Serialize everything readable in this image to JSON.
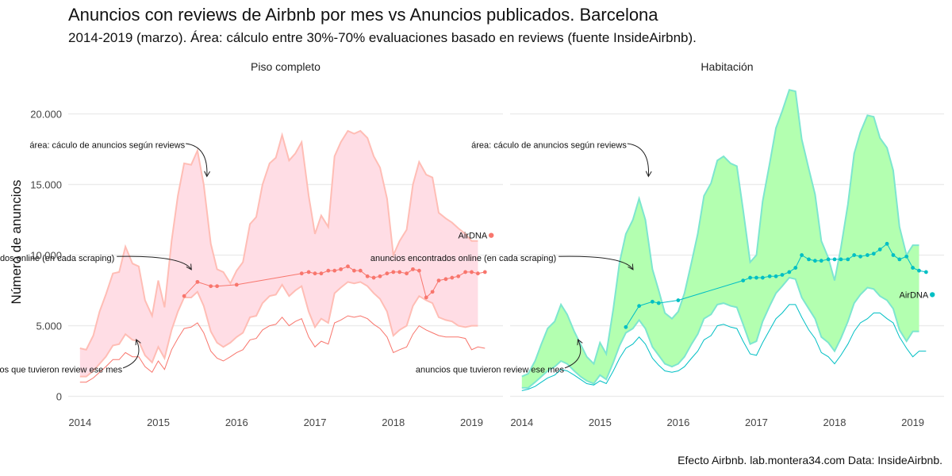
{
  "title": "Anuncios con reviews de Airbnb por mes vs Anuncios publicados. Barcelona",
  "subtitle": "2014-2019 (marzo). Área: cálculo entre 30%-70% evaluaciones basado en reviews (fuente InsideAirbnb).",
  "caption": "Efecto Airbnb. lab.montera34.com Data: InsideAirbnb.",
  "chart_data": {
    "type": "area",
    "ylabel": "Número de anuncios",
    "xlabel": "",
    "xlim": [
      2013.85,
      2019.4
    ],
    "ylim": [
      -700,
      22000
    ],
    "x_ticks": [
      2014,
      2015,
      2016,
      2017,
      2018,
      2019
    ],
    "y_ticks": [
      0,
      5000,
      10000,
      15000,
      20000
    ],
    "y_tick_labels": [
      "0",
      "5.000",
      "10.000",
      "15.000",
      "20.000"
    ],
    "grid": true,
    "legend": "none",
    "annotations": {
      "area": "área: cáculo de anuncios según reviews",
      "online": "anuncios encontrados online (en cada scraping)",
      "reviews": "anuncios que tuvieron review ese mes",
      "airdna": "AirDNA"
    },
    "panels": [
      {
        "name": "Piso completo",
        "color": "#f8766d",
        "area_fill": "#ffdde5",
        "area_stroke": "#ffbdb5",
        "area_x": [
          2014.0,
          2014.08,
          2014.17,
          2014.25,
          2014.33,
          2014.42,
          2014.5,
          2014.58,
          2014.67,
          2014.75,
          2014.83,
          2014.92,
          2015.0,
          2015.08,
          2015.17,
          2015.25,
          2015.33,
          2015.42,
          2015.5,
          2015.58,
          2015.67,
          2015.75,
          2015.83,
          2015.92,
          2016.0,
          2016.08,
          2016.17,
          2016.25,
          2016.33,
          2016.42,
          2016.5,
          2016.58,
          2016.67,
          2016.75,
          2016.83,
          2016.92,
          2017.0,
          2017.08,
          2017.17,
          2017.25,
          2017.33,
          2017.42,
          2017.5,
          2017.58,
          2017.67,
          2017.75,
          2017.83,
          2017.92,
          2018.0,
          2018.08,
          2018.17,
          2018.25,
          2018.33,
          2018.42,
          2018.5,
          2018.58,
          2018.67,
          2018.75,
          2018.83,
          2018.92,
          2019.0,
          2019.08
        ],
        "area_upper": [
          3400,
          3300,
          4300,
          6000,
          7200,
          8700,
          8800,
          10600,
          9400,
          9200,
          6800,
          5700,
          8200,
          6300,
          11000,
          14200,
          16500,
          16400,
          17400,
          15000,
          10800,
          9000,
          8800,
          8000,
          8900,
          9500,
          12200,
          12700,
          15000,
          16500,
          16900,
          18500,
          16700,
          17200,
          18000,
          14200,
          11500,
          12800,
          12000,
          17000,
          18000,
          18800,
          18600,
          18800,
          18300,
          17000,
          16200,
          14000,
          10000,
          11000,
          11800,
          15000,
          16600,
          15700,
          15500,
          13000,
          12600,
          12300,
          11900,
          11500,
          11000,
          11000
        ],
        "area_lower": [
          1400,
          1400,
          1800,
          2300,
          2800,
          3600,
          3700,
          4400,
          4000,
          3900,
          2900,
          2400,
          3500,
          2700,
          4700,
          6000,
          7000,
          7000,
          7400,
          6400,
          4600,
          3800,
          3500,
          3800,
          4200,
          4500,
          5600,
          5700,
          6600,
          7100,
          7200,
          7900,
          7100,
          7500,
          7800,
          6000,
          4900,
          5500,
          5200,
          7300,
          7700,
          8100,
          8000,
          8100,
          7800,
          7300,
          6900,
          6000,
          4300,
          4700,
          5000,
          6400,
          7100,
          6800,
          6600,
          5600,
          5400,
          5300,
          5000,
          4900,
          5000,
          5000
        ],
        "reviews_x": [
          2014.0,
          2014.08,
          2014.17,
          2014.25,
          2014.33,
          2014.42,
          2014.5,
          2014.58,
          2014.67,
          2014.75,
          2014.83,
          2014.92,
          2015.0,
          2015.08,
          2015.17,
          2015.25,
          2015.33,
          2015.42,
          2015.5,
          2015.58,
          2015.67,
          2015.75,
          2015.83,
          2015.92,
          2016.0,
          2016.08,
          2016.17,
          2016.25,
          2016.33,
          2016.42,
          2016.5,
          2016.58,
          2016.67,
          2016.75,
          2016.83,
          2016.92,
          2017.0,
          2017.08,
          2017.17,
          2017.25,
          2017.33,
          2017.42,
          2017.5,
          2017.58,
          2017.67,
          2017.75,
          2017.83,
          2017.92,
          2018.0,
          2018.08,
          2018.17,
          2018.25,
          2018.33,
          2018.42,
          2018.5,
          2018.58,
          2018.67,
          2018.75,
          2018.83,
          2018.92,
          2019.0,
          2019.08,
          2019.17
        ],
        "reviews_values": [
          1000,
          1000,
          1300,
          1700,
          2100,
          2600,
          2600,
          3100,
          2800,
          2800,
          2100,
          1700,
          2500,
          1900,
          3300,
          4100,
          4800,
          4900,
          5200,
          4500,
          3200,
          2700,
          2500,
          2800,
          3100,
          3300,
          4000,
          4100,
          4700,
          5000,
          5100,
          5600,
          5000,
          5300,
          5500,
          4200,
          3500,
          3900,
          3700,
          5200,
          5400,
          5700,
          5600,
          5700,
          5500,
          5100,
          4800,
          4200,
          3100,
          3300,
          3500,
          4400,
          5000,
          4700,
          4500,
          4300,
          4200,
          4200,
          4200,
          4100,
          3300,
          3500,
          3400
        ],
        "online_x": [
          2015.33,
          2015.5,
          2015.67,
          2015.75,
          2016.0,
          2016.83,
          2016.92,
          2017.0,
          2017.08,
          2017.17,
          2017.25,
          2017.33,
          2017.42,
          2017.5,
          2017.58,
          2017.67,
          2017.75,
          2017.83,
          2017.92,
          2018.0,
          2018.08,
          2018.17,
          2018.25,
          2018.33,
          2018.42,
          2018.5,
          2018.58,
          2018.67,
          2018.75,
          2018.83,
          2018.92,
          2019.0,
          2019.08,
          2019.17
        ],
        "online_values": [
          7100,
          8100,
          7800,
          7800,
          7900,
          8700,
          8800,
          8700,
          8700,
          8900,
          8900,
          9000,
          9200,
          8900,
          8900,
          8500,
          8400,
          8500,
          8700,
          8800,
          8800,
          8700,
          9000,
          8900,
          7000,
          7400,
          8200,
          8300,
          8400,
          8500,
          8800,
          8800,
          8700,
          8800
        ],
        "airdna_x": 2019.25,
        "airdna_value": 11400
      },
      {
        "name": "Habitación",
        "color": "#00bfc4",
        "area_fill": "#b3ffb0",
        "area_stroke": "#7de6cf",
        "area_x": [
          2014.0,
          2014.08,
          2014.17,
          2014.25,
          2014.33,
          2014.42,
          2014.5,
          2014.58,
          2014.67,
          2014.75,
          2014.83,
          2014.92,
          2015.0,
          2015.08,
          2015.17,
          2015.25,
          2015.33,
          2015.42,
          2015.5,
          2015.58,
          2015.67,
          2015.75,
          2015.83,
          2015.92,
          2016.0,
          2016.08,
          2016.17,
          2016.25,
          2016.33,
          2016.42,
          2016.5,
          2016.58,
          2016.67,
          2016.75,
          2016.83,
          2016.92,
          2017.0,
          2017.08,
          2017.17,
          2017.25,
          2017.33,
          2017.42,
          2017.5,
          2017.58,
          2017.67,
          2017.75,
          2017.83,
          2017.92,
          2018.0,
          2018.08,
          2018.17,
          2018.25,
          2018.33,
          2018.42,
          2018.5,
          2018.58,
          2018.67,
          2018.75,
          2018.83,
          2018.92,
          2019.0,
          2019.08
        ],
        "area_upper": [
          1400,
          1600,
          2500,
          3700,
          4800,
          5300,
          6500,
          5800,
          4600,
          3700,
          2800,
          2300,
          3800,
          3000,
          6200,
          9500,
          11500,
          12500,
          14000,
          12500,
          9000,
          7500,
          5900,
          5500,
          6000,
          7300,
          9500,
          11500,
          14200,
          15100,
          16700,
          17000,
          16500,
          16300,
          13200,
          9500,
          10000,
          13800,
          16500,
          19000,
          20200,
          21700,
          21600,
          18200,
          16100,
          14300,
          11000,
          9800,
          8200,
          10500,
          13600,
          17200,
          18700,
          19900,
          19800,
          18300,
          17600,
          16000,
          12000,
          10000,
          10700,
          10700
        ],
        "area_lower": [
          600,
          600,
          1000,
          1400,
          1800,
          2100,
          2500,
          2300,
          1800,
          1400,
          1100,
          900,
          1500,
          1200,
          2400,
          3600,
          4500,
          4800,
          5400,
          4800,
          3500,
          2900,
          2300,
          2100,
          2300,
          2800,
          3700,
          4400,
          5500,
          5800,
          6500,
          6600,
          6400,
          6300,
          5100,
          3700,
          3900,
          5300,
          6400,
          7300,
          7800,
          8400,
          8300,
          7000,
          6200,
          5500,
          4200,
          3800,
          3200,
          4100,
          5300,
          6600,
          7200,
          7700,
          7600,
          7100,
          6800,
          6200,
          4700,
          3900,
          4600,
          4600
        ],
        "reviews_x": [
          2014.0,
          2014.08,
          2014.17,
          2014.25,
          2014.33,
          2014.42,
          2014.5,
          2014.58,
          2014.67,
          2014.75,
          2014.83,
          2014.92,
          2015.0,
          2015.08,
          2015.17,
          2015.25,
          2015.33,
          2015.42,
          2015.5,
          2015.58,
          2015.67,
          2015.75,
          2015.83,
          2015.92,
          2016.0,
          2016.08,
          2016.17,
          2016.25,
          2016.33,
          2016.42,
          2016.5,
          2016.58,
          2016.67,
          2016.75,
          2016.83,
          2016.92,
          2017.0,
          2017.08,
          2017.17,
          2017.25,
          2017.33,
          2017.42,
          2017.5,
          2017.58,
          2017.67,
          2017.75,
          2017.83,
          2017.92,
          2018.0,
          2018.08,
          2018.17,
          2018.25,
          2018.33,
          2018.42,
          2018.5,
          2018.58,
          2018.67,
          2018.75,
          2018.83,
          2018.92,
          2019.0,
          2019.08,
          2019.17
        ],
        "reviews_values": [
          400,
          500,
          700,
          1000,
          1300,
          1500,
          1900,
          1800,
          1500,
          1200,
          900,
          800,
          1100,
          900,
          1800,
          2700,
          3400,
          3700,
          4200,
          3700,
          2700,
          2200,
          1800,
          1700,
          1800,
          2100,
          2700,
          3200,
          4000,
          4300,
          5000,
          5100,
          4900,
          4800,
          3900,
          3000,
          2900,
          3800,
          4700,
          5500,
          5900,
          6500,
          6500,
          5600,
          4700,
          4100,
          3100,
          2800,
          2300,
          2900,
          3700,
          4600,
          5200,
          5500,
          5900,
          5900,
          5500,
          5200,
          4200,
          3400,
          2800,
          3200,
          3200
        ],
        "online_x": [
          2015.33,
          2015.5,
          2015.67,
          2015.75,
          2016.0,
          2016.83,
          2016.92,
          2017.0,
          2017.08,
          2017.17,
          2017.25,
          2017.33,
          2017.42,
          2017.5,
          2017.58,
          2017.67,
          2017.75,
          2017.83,
          2017.92,
          2018.0,
          2018.08,
          2018.17,
          2018.25,
          2018.33,
          2018.42,
          2018.5,
          2018.58,
          2018.67,
          2018.75,
          2018.83,
          2018.92,
          2019.0,
          2019.08,
          2019.17
        ],
        "online_values": [
          4900,
          6400,
          6700,
          6600,
          6800,
          8200,
          8400,
          8400,
          8400,
          8500,
          8500,
          8600,
          8800,
          9100,
          10000,
          9700,
          9600,
          9600,
          9700,
          9700,
          9700,
          9700,
          10000,
          9900,
          10000,
          10100,
          10400,
          10800,
          10000,
          9700,
          9900,
          9100,
          8900,
          8800
        ],
        "airdna_x": 2019.25,
        "airdna_value": 7200
      }
    ]
  }
}
